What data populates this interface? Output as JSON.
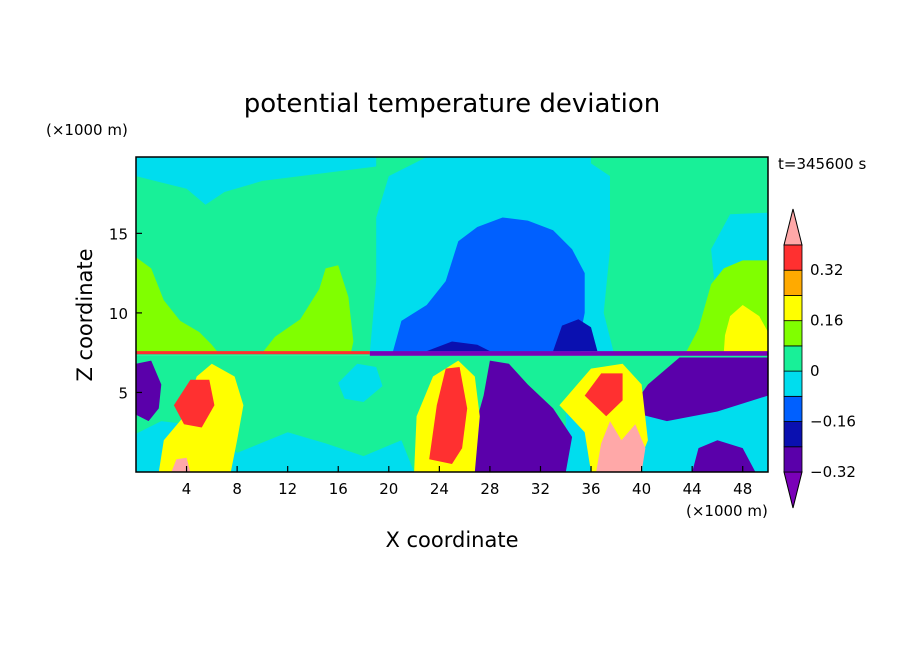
{
  "chart_data": {
    "type": "heatmap",
    "title": "potential temperature deviation",
    "xlabel": "X coordinate",
    "ylabel": "Z coordinate",
    "x_unit": "(×1000 m)",
    "y_unit": "(×1000 m)",
    "time_label": "t=345600 s",
    "xlim": [
      0,
      50
    ],
    "ylim": [
      0,
      19.8
    ],
    "x_ticks": [
      4,
      8,
      12,
      16,
      20,
      24,
      28,
      32,
      36,
      40,
      44,
      48
    ],
    "y_ticks": [
      5,
      10,
      15
    ],
    "colorbar": {
      "levels": [
        -0.4,
        -0.32,
        -0.24,
        -0.16,
        -0.08,
        0,
        0.08,
        0.16,
        0.24,
        0.32,
        0.4
      ],
      "labels": [
        -0.32,
        -0.16,
        0,
        0.16,
        0.32
      ],
      "colors": [
        "#7a00b8",
        "#5a00aa",
        "#0a10b0",
        "#0060ff",
        "#00ddee",
        "#18f098",
        "#80ff00",
        "#ffff00",
        "#ffaa00",
        "#ff3030",
        "#ffa8a8"
      ],
      "extend": "both"
    },
    "regions": [
      {
        "level": 0,
        "polygon": [
          [
            0,
            7.3
          ],
          [
            50,
            7.3
          ],
          [
            50,
            19.8
          ],
          [
            0,
            19.8
          ]
        ]
      },
      {
        "level": -0.08,
        "polygon": [
          [
            0,
            19.8
          ],
          [
            0,
            18.6
          ],
          [
            2,
            18.2
          ],
          [
            4,
            17.8
          ],
          [
            5.5,
            16.8
          ],
          [
            7,
            17.6
          ],
          [
            10,
            18.3
          ],
          [
            14,
            18.7
          ],
          [
            19,
            19.2
          ],
          [
            19,
            19.8
          ]
        ]
      },
      {
        "level": -0.08,
        "polygon": [
          [
            18.5,
            7.5
          ],
          [
            19,
            12
          ],
          [
            19,
            16
          ],
          [
            20,
            18.6
          ],
          [
            22,
            19.4
          ],
          [
            23,
            19.8
          ],
          [
            36,
            19.8
          ],
          [
            36,
            19.4
          ],
          [
            37.5,
            18.6
          ],
          [
            37.5,
            14
          ],
          [
            37,
            10
          ],
          [
            37.8,
            7.5
          ]
        ]
      },
      {
        "level": -0.08,
        "polygon": [
          [
            47,
            7.5
          ],
          [
            46,
            10
          ],
          [
            45.5,
            14
          ],
          [
            47,
            16.2
          ],
          [
            50,
            16.3
          ],
          [
            50,
            7.5
          ]
        ]
      },
      {
        "level": -0.16,
        "polygon": [
          [
            20.3,
            7.5
          ],
          [
            21,
            9.5
          ],
          [
            23,
            10.5
          ],
          [
            24.5,
            12
          ],
          [
            25.5,
            14.5
          ],
          [
            27,
            15.4
          ],
          [
            29,
            16
          ],
          [
            31,
            15.8
          ],
          [
            33,
            15.2
          ],
          [
            34.5,
            14
          ],
          [
            35.5,
            12.5
          ],
          [
            35.5,
            10
          ],
          [
            35,
            8
          ],
          [
            35.2,
            7.5
          ]
        ]
      },
      {
        "level": 0.08,
        "polygon": [
          [
            0,
            7.5
          ],
          [
            0,
            13.5
          ],
          [
            1.2,
            12.8
          ],
          [
            2.2,
            10.8
          ],
          [
            3.5,
            9.5
          ],
          [
            5,
            8.8
          ],
          [
            6,
            8
          ],
          [
            6.5,
            7.5
          ]
        ]
      },
      {
        "level": 0.08,
        "polygon": [
          [
            10,
            7.5
          ],
          [
            11,
            8.5
          ],
          [
            13,
            9.6
          ],
          [
            14.5,
            11.5
          ],
          [
            15,
            12.8
          ],
          [
            16,
            13
          ],
          [
            16.8,
            11
          ],
          [
            17.2,
            8.2
          ],
          [
            17,
            7.5
          ]
        ]
      },
      {
        "level": 0.08,
        "polygon": [
          [
            43.5,
            7.5
          ],
          [
            44.5,
            9
          ],
          [
            45.5,
            11.8
          ],
          [
            46.5,
            12.8
          ],
          [
            48,
            13.3
          ],
          [
            50,
            13.3
          ],
          [
            50,
            7.5
          ]
        ]
      },
      {
        "level": 0.16,
        "polygon": [
          [
            46.5,
            7.5
          ],
          [
            46.6,
            8.6
          ],
          [
            47,
            9.8
          ],
          [
            48,
            10.5
          ],
          [
            49.3,
            9.8
          ],
          [
            50,
            8.8
          ],
          [
            50,
            7.5
          ]
        ]
      },
      {
        "level": -0.24,
        "polygon": [
          [
            23,
            7.6
          ],
          [
            25,
            8.2
          ],
          [
            27,
            8
          ],
          [
            28,
            7.6
          ]
        ]
      },
      {
        "level": -0.24,
        "polygon": [
          [
            33,
            7.6
          ],
          [
            33.7,
            9.2
          ],
          [
            35,
            9.6
          ],
          [
            36,
            9.1
          ],
          [
            36.5,
            7.6
          ]
        ]
      },
      {
        "level": -0.4,
        "polygon": [
          [
            18.5,
            7.3
          ],
          [
            50,
            7.3
          ],
          [
            50,
            7.6
          ],
          [
            18.5,
            7.6
          ]
        ]
      },
      {
        "level": 0.32,
        "polygon": [
          [
            0,
            7.4
          ],
          [
            18.5,
            7.4
          ],
          [
            18.5,
            7.6
          ],
          [
            0,
            7.6
          ]
        ]
      },
      {
        "level": 0,
        "polygon": [
          [
            0,
            0
          ],
          [
            50,
            0
          ],
          [
            50,
            7.3
          ],
          [
            0,
            7.3
          ]
        ]
      },
      {
        "level": -0.08,
        "polygon": [
          [
            0,
            0
          ],
          [
            0,
            2.4
          ],
          [
            2,
            3.2
          ],
          [
            4,
            3
          ],
          [
            6,
            2.5
          ],
          [
            8,
            1.2
          ],
          [
            12,
            2.5
          ],
          [
            15,
            1.8
          ],
          [
            18,
            1
          ],
          [
            21,
            2
          ],
          [
            22,
            0
          ]
        ]
      },
      {
        "level": -0.08,
        "polygon": [
          [
            34,
            3.8
          ],
          [
            36,
            3.2
          ],
          [
            40,
            3.8
          ],
          [
            43,
            4.4
          ],
          [
            46,
            4.6
          ],
          [
            50,
            5.2
          ],
          [
            50,
            0
          ],
          [
            34,
            0
          ]
        ]
      },
      {
        "level": -0.08,
        "polygon": [
          [
            16,
            5.6
          ],
          [
            17.5,
            6.8
          ],
          [
            19,
            6.6
          ],
          [
            19.5,
            5.4
          ],
          [
            18,
            4.4
          ],
          [
            16.5,
            4.6
          ]
        ]
      },
      {
        "level": -0.32,
        "polygon": [
          [
            0,
            3.6
          ],
          [
            0,
            6.8
          ],
          [
            1.2,
            7
          ],
          [
            2,
            5.5
          ],
          [
            1.8,
            4
          ],
          [
            1,
            3.2
          ]
        ]
      },
      {
        "level": -0.32,
        "polygon": [
          [
            28,
            7
          ],
          [
            27.5,
            4.8
          ],
          [
            26.5,
            2
          ],
          [
            26.8,
            0
          ],
          [
            34,
            0
          ],
          [
            34.5,
            2.2
          ],
          [
            33,
            4
          ],
          [
            31,
            5.5
          ],
          [
            29.5,
            6.8
          ]
        ]
      },
      {
        "level": -0.32,
        "polygon": [
          [
            39,
            3.8
          ],
          [
            40.5,
            5.5
          ],
          [
            43,
            7.2
          ],
          [
            50,
            7.2
          ],
          [
            50,
            4.8
          ],
          [
            46,
            3.8
          ],
          [
            42,
            3.2
          ]
        ]
      },
      {
        "level": -0.32,
        "polygon": [
          [
            44,
            0
          ],
          [
            44.5,
            1.5
          ],
          [
            46,
            2
          ],
          [
            48,
            1.5
          ],
          [
            49,
            0
          ]
        ]
      },
      {
        "level": 0.16,
        "polygon": [
          [
            1.8,
            0
          ],
          [
            2.2,
            2
          ],
          [
            3.8,
            3.5
          ],
          [
            4.8,
            6
          ],
          [
            6,
            6.8
          ],
          [
            7.8,
            6
          ],
          [
            8.5,
            4.2
          ],
          [
            8,
            2
          ],
          [
            7.5,
            0
          ]
        ]
      },
      {
        "level": 0.16,
        "polygon": [
          [
            22,
            0
          ],
          [
            22.2,
            3.5
          ],
          [
            23.5,
            6
          ],
          [
            25.5,
            7
          ],
          [
            26.8,
            6
          ],
          [
            27.2,
            3.5
          ],
          [
            26.8,
            0
          ]
        ]
      },
      {
        "level": 0.16,
        "polygon": [
          [
            33.5,
            4.2
          ],
          [
            36,
            6.5
          ],
          [
            38.5,
            6.8
          ],
          [
            40,
            5.5
          ],
          [
            40.5,
            2
          ],
          [
            39.5,
            0
          ],
          [
            36,
            0
          ],
          [
            35.5,
            2.5
          ]
        ]
      },
      {
        "level": 0.32,
        "polygon": [
          [
            3,
            4.2
          ],
          [
            4.3,
            5.8
          ],
          [
            5.8,
            5.8
          ],
          [
            6.2,
            4.2
          ],
          [
            5.2,
            2.8
          ],
          [
            3.8,
            3
          ]
        ]
      },
      {
        "level": 0.32,
        "polygon": [
          [
            23.2,
            0.8
          ],
          [
            23.8,
            4.2
          ],
          [
            24.5,
            6.5
          ],
          [
            25.6,
            6.6
          ],
          [
            26.2,
            4
          ],
          [
            25.8,
            1.5
          ],
          [
            25,
            0.5
          ]
        ]
      },
      {
        "level": 0.32,
        "polygon": [
          [
            35.5,
            4.8
          ],
          [
            36.8,
            6.2
          ],
          [
            38.5,
            6.2
          ],
          [
            38.5,
            4.5
          ],
          [
            37.2,
            3.5
          ]
        ]
      },
      {
        "level": 0.4,
        "polygon": [
          [
            36.4,
            0
          ],
          [
            36.8,
            1.8
          ],
          [
            37.5,
            3.2
          ],
          [
            38.4,
            2
          ],
          [
            39.5,
            3
          ],
          [
            40.3,
            1.5
          ],
          [
            40,
            0
          ]
        ]
      },
      {
        "level": 0.4,
        "polygon": [
          [
            2.8,
            0
          ],
          [
            3.2,
            0.8
          ],
          [
            4,
            0.9
          ],
          [
            4.3,
            0
          ]
        ]
      }
    ]
  }
}
